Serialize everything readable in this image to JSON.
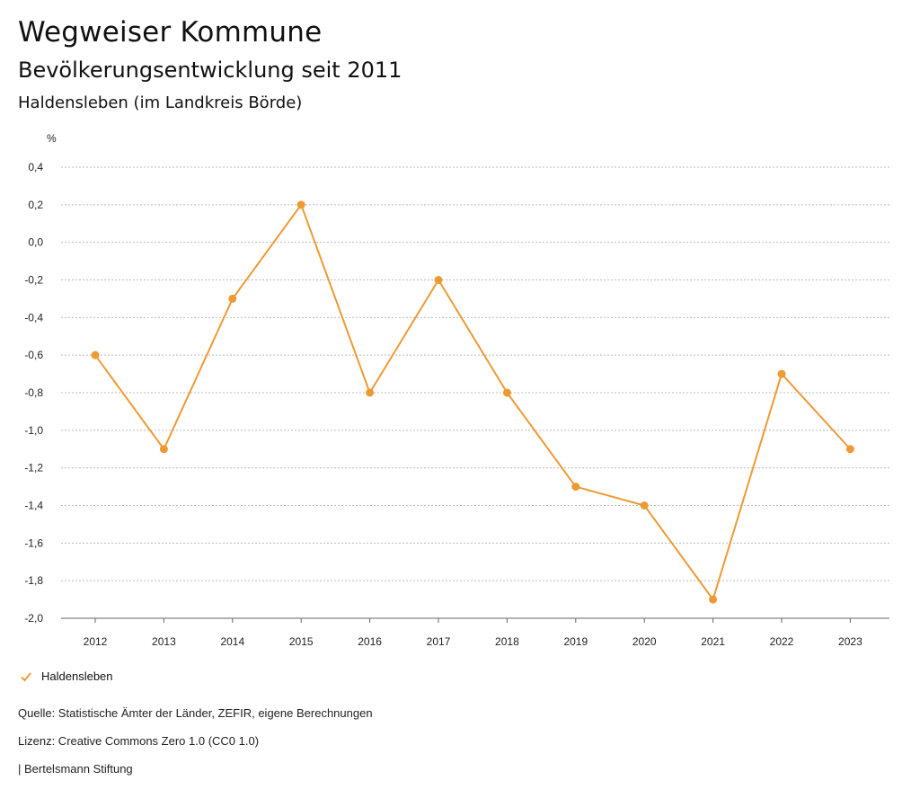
{
  "header": {
    "title": "Wegweiser Kommune",
    "subtitle": "Bevölkerungsentwicklung seit 2011",
    "region": "Haldensleben (im Landkreis Börde)"
  },
  "chart_data": {
    "type": "line",
    "unit_label": "%",
    "x": [
      "2012",
      "2013",
      "2014",
      "2015",
      "2016",
      "2017",
      "2018",
      "2019",
      "2020",
      "2021",
      "2022",
      "2023"
    ],
    "series": [
      {
        "name": "Haldensleben",
        "values": [
          -0.6,
          -1.1,
          -0.3,
          0.2,
          -0.8,
          -0.2,
          -0.8,
          -1.3,
          -1.4,
          -1.9,
          -0.7,
          -1.1
        ]
      }
    ],
    "yticks": [
      "0,4",
      "0,2",
      "0,0",
      "-0,2",
      "-0,4",
      "-0,6",
      "-0,8",
      "-1,0",
      "-1,2",
      "-1,4",
      "-1,6",
      "-1,8",
      "-2,0"
    ],
    "ylim": [
      -2.0,
      0.4
    ],
    "grid": true,
    "legend_position": "bottom-left",
    "line_color": "#EE9A34"
  },
  "legend": {
    "label": "Haldensleben"
  },
  "footer": {
    "source": "Quelle: Statistische Ämter der Länder, ZEFIR, eigene Berechnungen",
    "license": "Lizenz: Creative Commons Zero 1.0 (CC0 1.0)",
    "publisher": "| Bertelsmann Stiftung"
  }
}
